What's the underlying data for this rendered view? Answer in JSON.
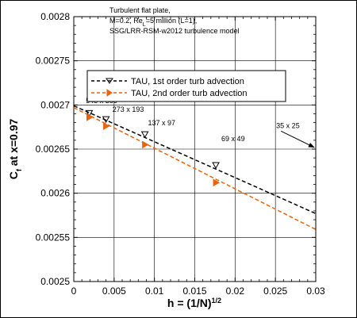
{
  "chart_data": {
    "type": "line",
    "title_lines": [
      "Turbulent flat plate,",
      "M=0.2, Re",
      "=5 million (L=1),",
      "SSG/LRR-RSM-w2012 turbulence model"
    ],
    "title_re_subscript": "L",
    "xlabel": "h = (1/N)",
    "xlabel_superscript": "1/2",
    "ylabel": "C",
    "ylabel_subscript": "f",
    "ylabel_suffix": " at x=0.97",
    "xlim": [
      0,
      0.03
    ],
    "ylim": [
      0.0025,
      0.0028
    ],
    "xticks": [
      "0",
      "0.005",
      "0.01",
      "0.015",
      "0.02",
      "0.025",
      "0.03"
    ],
    "xtick_values": [
      0,
      0.005,
      0.01,
      0.015,
      0.02,
      0.025,
      0.03
    ],
    "yticks": [
      "0.0025",
      "0.00255",
      "0.0026",
      "0.00265",
      "0.0027",
      "0.00275",
      "0.0028"
    ],
    "ytick_values": [
      0.0025,
      0.00255,
      0.0026,
      0.00265,
      0.0027,
      0.00275,
      0.0028
    ],
    "grid": true,
    "legend_position": "top-center",
    "series": [
      {
        "name": "TAU, 1st order turb advection",
        "color": "#000000",
        "marker": "triangle-down",
        "dash": "dashed",
        "points": [
          {
            "x": 0.001916,
            "y": 0.002691
          },
          {
            "x": 0.003992,
            "y": 0.002684
          },
          {
            "x": 0.008818,
            "y": 0.002667
          },
          {
            "x": 0.017614,
            "y": 0.002632
          }
        ],
        "extrapolation": {
          "x": [
            0.0,
            0.03
          ],
          "y": [
            0.002699,
            0.002577
          ]
        }
      },
      {
        "name": "TAU, 2nd order turb advection",
        "color": "#e8630a",
        "marker": "triangle-right",
        "dash": "dashed",
        "points": [
          {
            "x": 0.001916,
            "y": 0.002686
          },
          {
            "x": 0.003992,
            "y": 0.002676
          },
          {
            "x": 0.008818,
            "y": 0.002655
          },
          {
            "x": 0.017614,
            "y": 0.002612
          }
        ],
        "extrapolation": {
          "x": [
            0.0,
            0.03
          ],
          "y": [
            0.002697,
            0.002559
          ]
        }
      }
    ],
    "annotations": [
      {
        "text": "545 x 385",
        "x": 0.0015,
        "y": 0.002702
      },
      {
        "text": "273 x 193",
        "x": 0.0048,
        "y": 0.002692
      },
      {
        "text": "137 x 97",
        "x": 0.0092,
        "y": 0.002677
      },
      {
        "text": "69 x 49",
        "x": 0.0183,
        "y": 0.002659
      },
      {
        "text": "35 x 25",
        "x": 0.0251,
        "y": 0.002674,
        "arrow_to": {
          "x": 0.0298,
          "y": 0.002652
        }
      }
    ]
  }
}
